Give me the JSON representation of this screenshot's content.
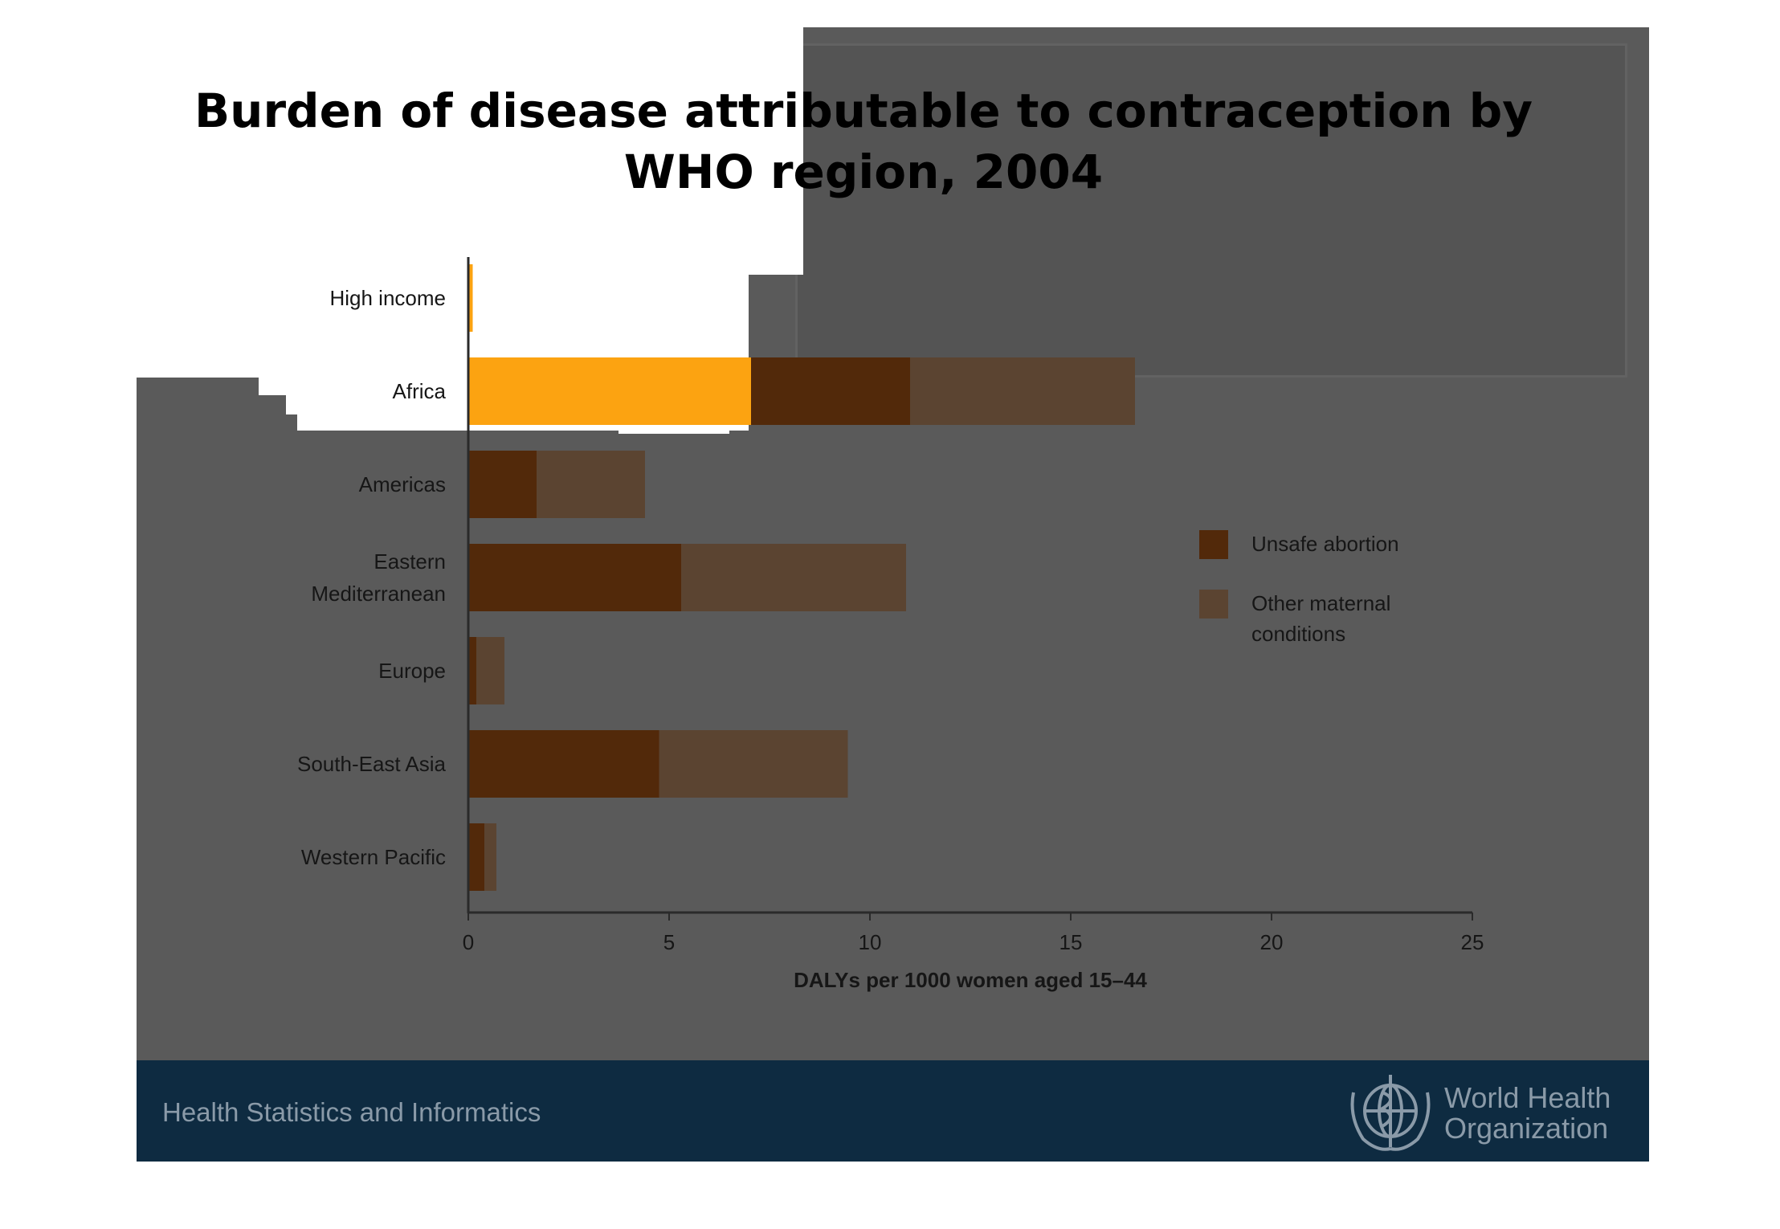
{
  "chart_data": {
    "type": "bar",
    "orientation": "horizontal",
    "stacked": true,
    "title": "Burden of disease attributable to contraception by WHO region, 2004",
    "categories": [
      "High income",
      "Africa",
      "Americas",
      "Eastern Mediterranean",
      "Europe",
      "South-East Asia",
      "Western Pacific"
    ],
    "category_lines": [
      [
        "High income"
      ],
      [
        "Africa"
      ],
      [
        "Americas"
      ],
      [
        "Eastern",
        "Mediterranean"
      ],
      [
        "Europe"
      ],
      [
        "South-East Asia"
      ],
      [
        "Western Pacific"
      ]
    ],
    "series": [
      {
        "name": "Unsafe abortion",
        "color": "#52290a",
        "values": [
          0.05,
          11.0,
          1.7,
          5.3,
          0.2,
          4.75,
          0.4
        ]
      },
      {
        "name": "Other maternal conditions",
        "color": "#5b4431",
        "values": [
          0.05,
          5.6,
          2.7,
          5.6,
          0.7,
          4.7,
          0.3
        ]
      }
    ],
    "highlight": {
      "color": "#fca311",
      "categories": [
        "High income",
        "Africa"
      ]
    },
    "xlabel": "DALYs per 1000 women aged 15–44",
    "ylabel": "",
    "xlim": [
      0,
      25
    ],
    "xticks": [
      0,
      5,
      10,
      15,
      20,
      25
    ],
    "legend_position": "right",
    "grid": false
  },
  "footer": {
    "section_title": "Health Statistics and Informatics",
    "org_name_line1": "World Health",
    "org_name_line2": "Organization"
  },
  "colors": {
    "slide_background": "#5a5a5a",
    "footer_background": "#0e2b41",
    "axis": "#2a2a2a",
    "text_dark": "#161616",
    "footer_text": "#8a9aa8"
  }
}
